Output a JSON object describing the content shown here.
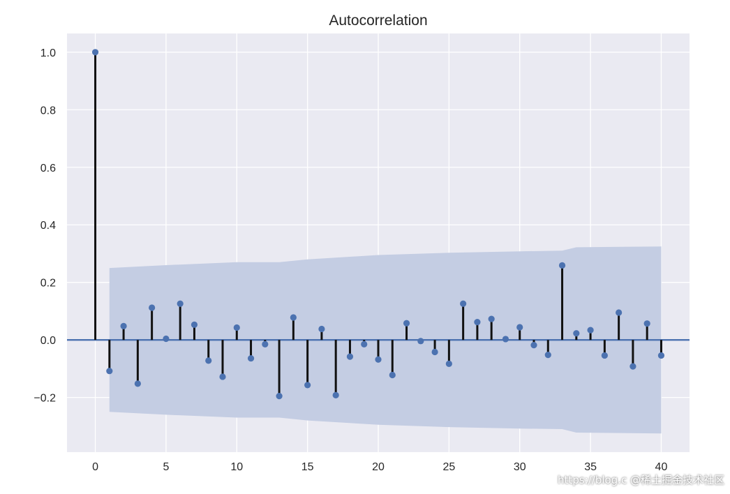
{
  "chart_data": {
    "type": "stem",
    "title": "Autocorrelation",
    "xlabel": "",
    "ylabel": "",
    "x": [
      0,
      1,
      2,
      3,
      4,
      5,
      6,
      7,
      8,
      9,
      10,
      11,
      12,
      13,
      14,
      15,
      16,
      17,
      18,
      19,
      20,
      21,
      22,
      23,
      24,
      25,
      26,
      27,
      28,
      29,
      30,
      31,
      32,
      33,
      34,
      35,
      36,
      37,
      38,
      39,
      40
    ],
    "values": [
      1.0,
      -0.108,
      0.048,
      -0.152,
      0.112,
      0.004,
      0.126,
      0.053,
      -0.072,
      -0.128,
      0.043,
      -0.064,
      -0.015,
      -0.195,
      0.078,
      -0.157,
      0.038,
      -0.192,
      -0.058,
      -0.015,
      -0.068,
      -0.122,
      0.058,
      -0.004,
      -0.042,
      -0.083,
      0.126,
      0.062,
      0.073,
      0.003,
      0.044,
      -0.018,
      -0.052,
      0.259,
      0.023,
      0.034,
      -0.054,
      0.095,
      -0.092,
      0.057,
      -0.054
    ],
    "confidence_band": {
      "x": [
        1,
        5,
        10,
        13,
        15,
        20,
        25,
        30,
        33,
        34,
        40
      ],
      "upper": [
        0.25,
        0.26,
        0.27,
        0.27,
        0.28,
        0.295,
        0.303,
        0.308,
        0.31,
        0.322,
        0.325
      ]
    },
    "xticks": [
      0,
      5,
      10,
      15,
      20,
      25,
      30,
      35,
      40
    ],
    "yticks": [
      -0.2,
      0.0,
      0.2,
      0.4,
      0.6,
      0.8,
      1.0
    ],
    "xlim": [
      -2,
      42
    ],
    "ylim": [
      -0.39,
      1.065
    ],
    "grid": true,
    "colors": {
      "background": "#eaeaf2",
      "grid": "#ffffff",
      "band": "#c4cde3",
      "stem": "#111111",
      "marker": "#4c72b0",
      "baseline": "#4c72b0"
    }
  },
  "watermark": "https://blog.c @稀土掘金技术社区"
}
